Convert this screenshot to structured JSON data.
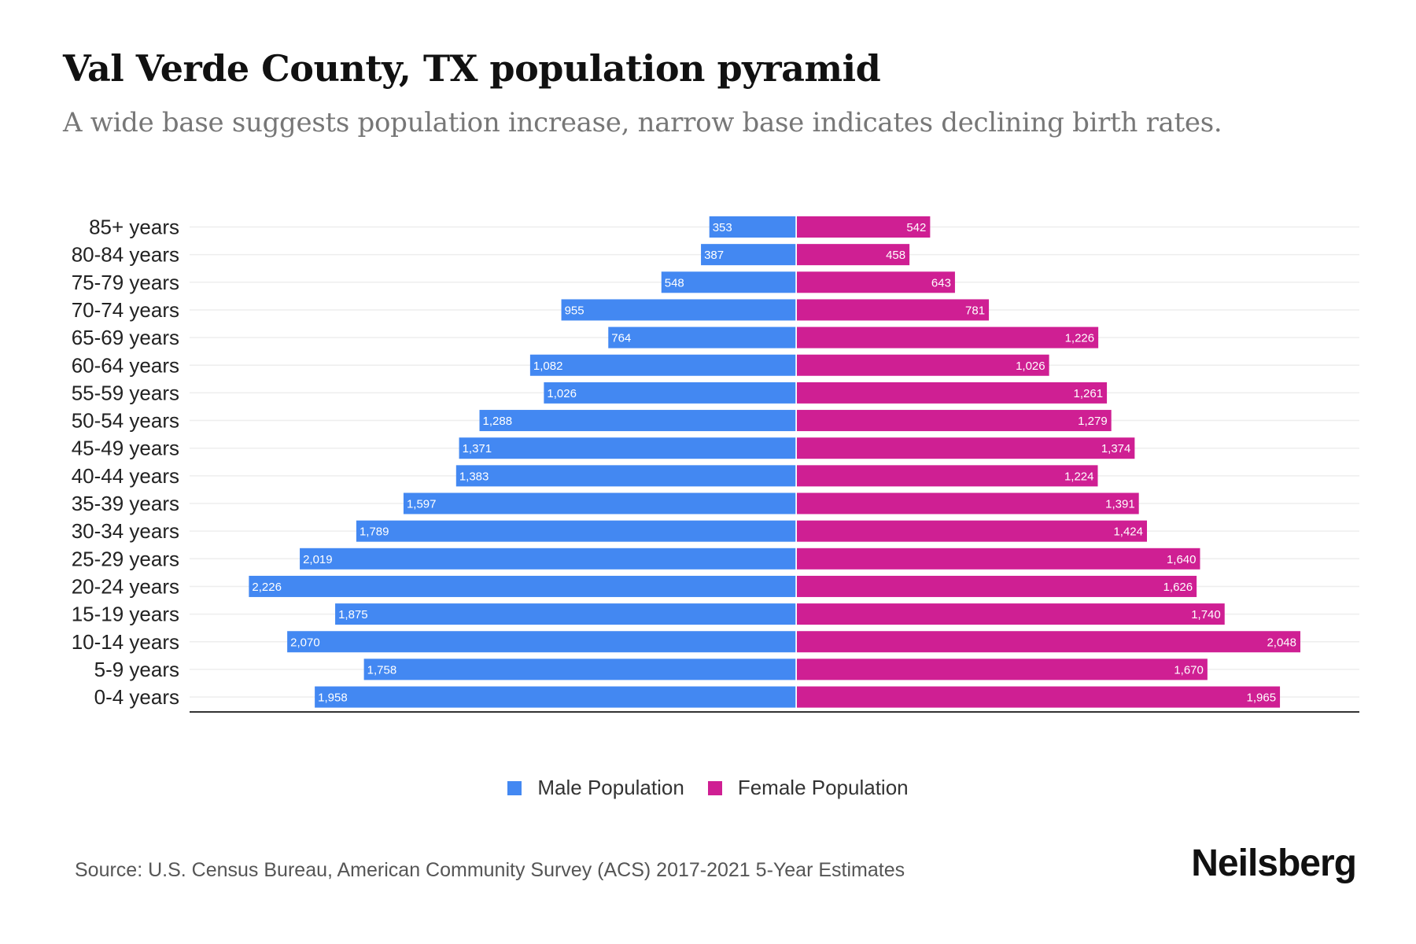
{
  "title": "Val Verde County, TX population pyramid",
  "subtitle": "A wide base suggests population increase, narrow base indicates declining birth rates.",
  "source": "Source: U.S. Census Bureau, American Community Survey (ACS) 2017-2021 5-Year Estimates",
  "brand": "Neilsberg",
  "colors": {
    "male": "#4388f2",
    "female": "#cf1f93"
  },
  "chart_data": {
    "type": "bar",
    "orientation": "horizontal-pyramid",
    "categories": [
      "85+ years",
      "80-84 years",
      "75-79 years",
      "70-74 years",
      "65-69 years",
      "60-64 years",
      "55-59 years",
      "50-54 years",
      "45-49 years",
      "40-44 years",
      "35-39 years",
      "30-34 years",
      "25-29 years",
      "20-24 years",
      "15-19 years",
      "10-14 years",
      "5-9 years",
      "0-4 years"
    ],
    "series": [
      {
        "name": "Male Population",
        "values": [
          353,
          387,
          548,
          955,
          764,
          1082,
          1026,
          1288,
          1371,
          1383,
          1597,
          1789,
          2019,
          2226,
          1875,
          2070,
          1758,
          1958
        ]
      },
      {
        "name": "Female Population",
        "values": [
          542,
          458,
          643,
          781,
          1226,
          1026,
          1261,
          1279,
          1374,
          1224,
          1391,
          1424,
          1640,
          1626,
          1740,
          2048,
          1670,
          1965
        ]
      }
    ],
    "legend_position": "bottom-center",
    "grid": true
  }
}
